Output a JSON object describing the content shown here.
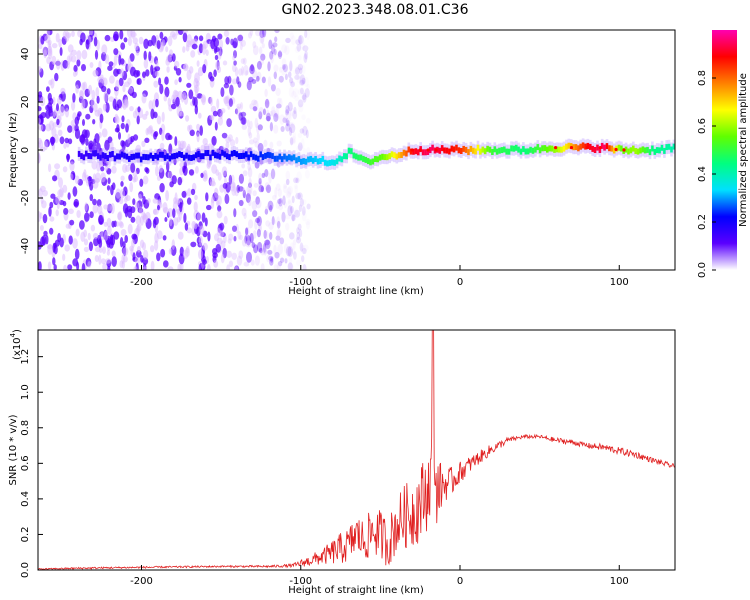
{
  "figure": {
    "title": "GN02.2023.348.08.01.C36"
  },
  "chart_data": [
    {
      "type": "heatmap",
      "xlabel": "Height of straight line (km)",
      "ylabel": "Frequency (Hz)",
      "xlim": [
        -265,
        135
      ],
      "ylim": [
        -50,
        50
      ],
      "xticks": [
        -200,
        -100,
        0,
        100
      ],
      "yticks": [
        -40,
        -20,
        0,
        20,
        40
      ],
      "colorbar": {
        "label": "Normalized spectral amplitude",
        "range": [
          0,
          1
        ],
        "ticks": [
          "0.0",
          "0.2",
          "0.4",
          "0.6",
          "0.8"
        ],
        "colormap": [
          "#ffffff",
          "#5a00ff",
          "#0000ff",
          "#00e0ff",
          "#00ff80",
          "#60ff00",
          "#ffff00",
          "#ff8000",
          "#ff0000",
          "#ff00b0"
        ]
      },
      "ridge": {
        "x": [
          -240,
          -200,
          -150,
          -120,
          -100,
          -80,
          -70,
          -60,
          -50,
          -40,
          -30,
          -20,
          -10,
          0,
          20,
          40,
          60,
          80,
          90,
          100,
          110,
          120,
          135
        ],
        "frequency": [
          -2,
          -3,
          -2,
          -3,
          -4,
          -5,
          -1,
          -5,
          -3,
          -2,
          0,
          0,
          0,
          0,
          0,
          0,
          1,
          1,
          1,
          0,
          0,
          0,
          1
        ],
        "amplitude": [
          0.15,
          0.2,
          0.2,
          0.25,
          0.3,
          0.35,
          0.45,
          0.5,
          0.55,
          0.7,
          0.9,
          0.95,
          0.9,
          0.85,
          0.5,
          0.45,
          0.6,
          0.9,
          0.95,
          0.55,
          0.6,
          0.45,
          0.4
        ]
      },
      "noise_extent_x": [
        -265,
        -95
      ],
      "series_color": "#5a00ff"
    },
    {
      "type": "line",
      "xlabel": "Height of straight line (km)",
      "ylabel": "SNR (10 * v/v)",
      "y_multiplier": "(x10",
      "y_multiplier_exp": "4",
      "y_multiplier_close": ")",
      "xlim": [
        -265,
        135
      ],
      "ylim": [
        0,
        1.35
      ],
      "xticks": [
        -200,
        -100,
        0,
        100
      ],
      "yticks": [
        "0.0",
        "0.2",
        "0.4",
        "0.6",
        "0.8",
        "1.0",
        "1.2"
      ],
      "color": "#e02020",
      "x": [
        -265,
        -240,
        -200,
        -150,
        -120,
        -105,
        -95,
        -85,
        -80,
        -75,
        -70,
        -65,
        -60,
        -55,
        -50,
        -45,
        -40,
        -35,
        -30,
        -25,
        -20,
        -18,
        -17,
        -16,
        -15,
        -10,
        -5,
        0,
        10,
        20,
        30,
        40,
        50,
        60,
        70,
        80,
        90,
        100,
        110,
        120,
        135
      ],
      "y": [
        0.005,
        0.01,
        0.015,
        0.02,
        0.02,
        0.025,
        0.05,
        0.08,
        0.1,
        0.12,
        0.14,
        0.2,
        0.16,
        0.22,
        0.2,
        0.15,
        0.25,
        0.3,
        0.32,
        0.38,
        0.45,
        0.55,
        1.4,
        0.55,
        0.45,
        0.48,
        0.5,
        0.55,
        0.62,
        0.68,
        0.73,
        0.75,
        0.75,
        0.73,
        0.72,
        0.7,
        0.69,
        0.67,
        0.65,
        0.62,
        0.58
      ],
      "noise_amplitude": [
        0.003,
        0.005,
        0.005,
        0.005,
        0.006,
        0.01,
        0.03,
        0.05,
        0.07,
        0.09,
        0.1,
        0.12,
        0.12,
        0.14,
        0.14,
        0.14,
        0.16,
        0.18,
        0.2,
        0.22,
        0.22,
        0.2,
        0.0,
        0.2,
        0.2,
        0.1,
        0.08,
        0.06,
        0.04,
        0.03,
        0.015,
        0.01,
        0.01,
        0.015,
        0.015,
        0.015,
        0.02,
        0.02,
        0.02,
        0.015,
        0.015
      ]
    }
  ]
}
